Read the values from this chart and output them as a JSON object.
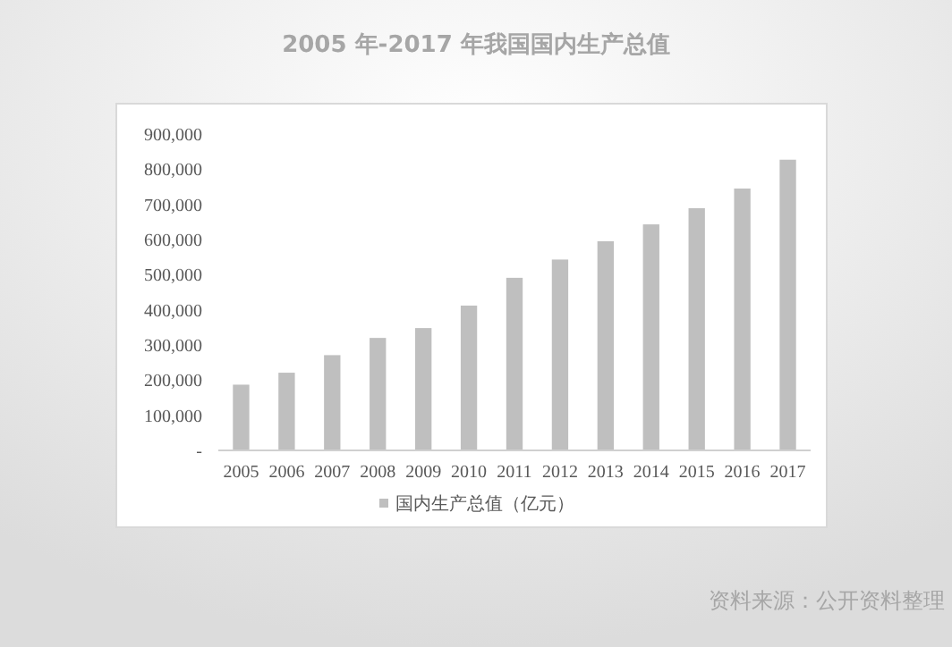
{
  "chart_data": {
    "type": "bar",
    "title": "2005 年-2017 年我国国内生产总值",
    "categories": [
      "2005",
      "2006",
      "2007",
      "2008",
      "2009",
      "2010",
      "2011",
      "2012",
      "2013",
      "2014",
      "2015",
      "2016",
      "2017"
    ],
    "series": [
      {
        "name": "国内生产总值（亿元）",
        "color": "#bfbfbf",
        "values": [
          187000,
          221000,
          271000,
          320000,
          348000,
          412000,
          491000,
          543000,
          595000,
          643000,
          689000,
          745000,
          827000
        ]
      }
    ],
    "ylim": [
      0,
      900000
    ],
    "yticks": [
      {
        "value": 0,
        "label": "-"
      },
      {
        "value": 100000,
        "label": "100,000"
      },
      {
        "value": 200000,
        "label": "200,000"
      },
      {
        "value": 300000,
        "label": "300,000"
      },
      {
        "value": 400000,
        "label": "400,000"
      },
      {
        "value": 500000,
        "label": "500,000"
      },
      {
        "value": 600000,
        "label": "600,000"
      },
      {
        "value": 700000,
        "label": "700,000"
      },
      {
        "value": 800000,
        "label": "800,000"
      },
      {
        "value": 900000,
        "label": "900,000"
      }
    ],
    "grid": false,
    "legend": "bottom",
    "annotations": [
      "资料来源：公开资料整理"
    ]
  }
}
